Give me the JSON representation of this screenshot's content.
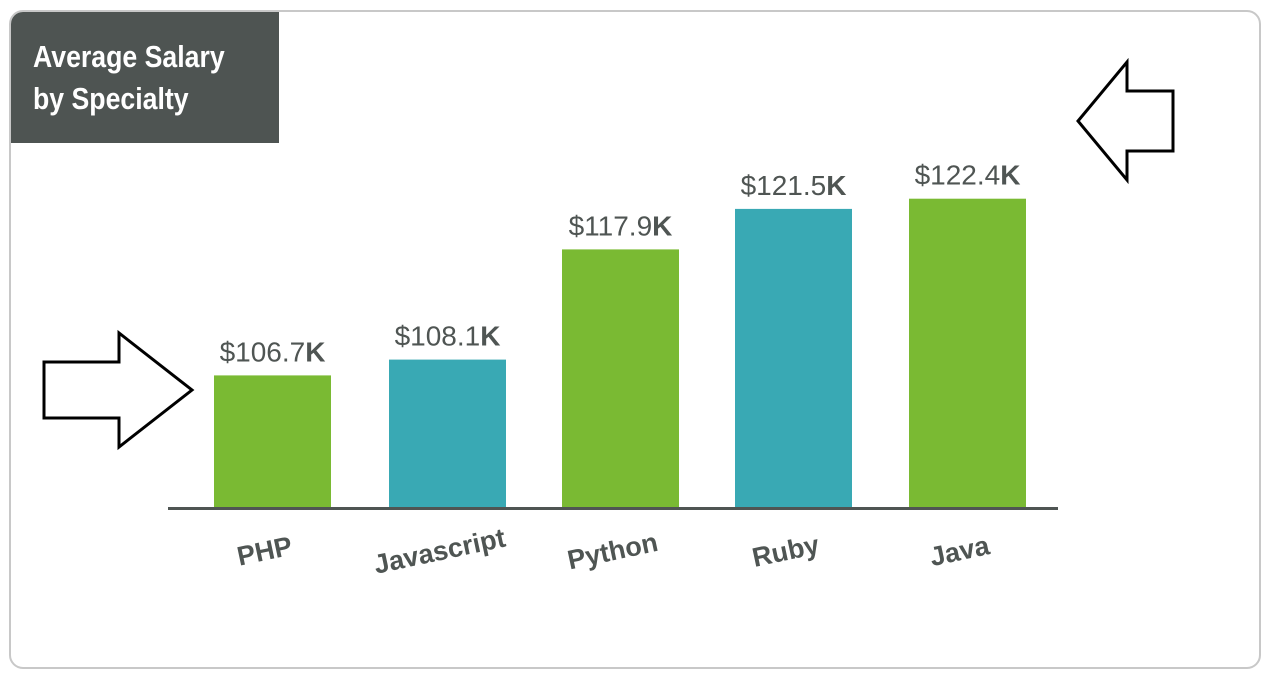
{
  "chart_data": {
    "type": "bar",
    "title_lines": [
      "Average Salary",
      "by Specialty"
    ],
    "categories": [
      "PHP",
      "Javascript",
      "Python",
      "Ruby",
      "Java"
    ],
    "values": [
      106.7,
      108.1,
      117.9,
      121.5,
      122.4
    ],
    "value_labels": [
      {
        "main": "$106.7",
        "unit": "K"
      },
      {
        "main": "$108.1",
        "unit": "K"
      },
      {
        "main": "$117.9",
        "unit": "K"
      },
      {
        "main": "$121.5",
        "unit": "K"
      },
      {
        "main": "$122.4",
        "unit": "K"
      }
    ],
    "bar_colors": [
      "#7aba33",
      "#39a9b4",
      "#7aba33",
      "#39a9b4",
      "#7aba33"
    ],
    "ylim": [
      95,
      127
    ],
    "grid": false,
    "legend": "none"
  },
  "colors": {
    "title_background": "#4e5452",
    "title_text": "#ffffff",
    "green": "#7aba33",
    "teal": "#39a9b4",
    "axis": "#4f5553",
    "label_text": "#4f5553"
  },
  "annotations": {
    "left_arrow_icon": "arrow-right-outline-icon",
    "right_arrow_icon": "arrow-left-outline-icon"
  }
}
